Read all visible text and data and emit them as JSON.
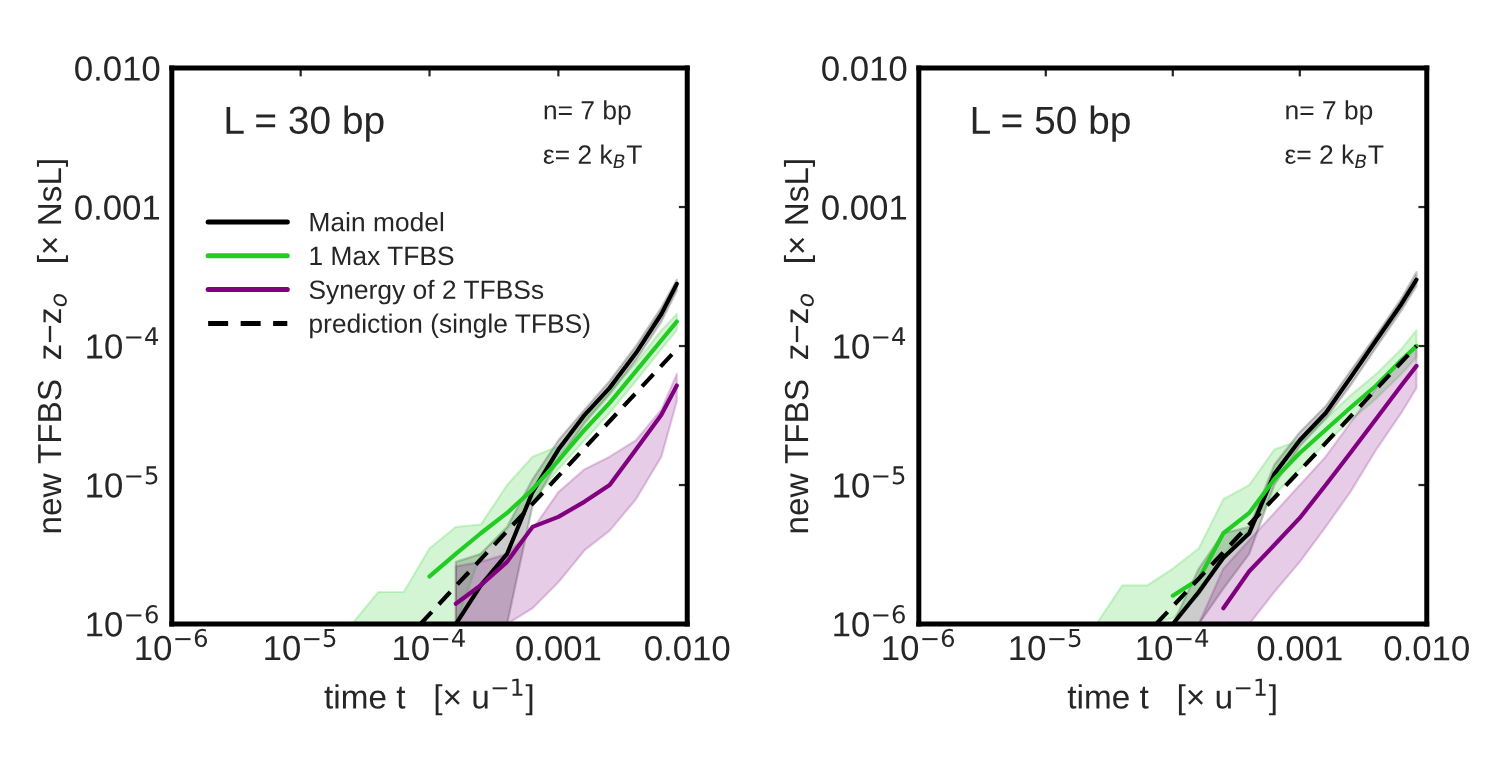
{
  "chart_data": [
    {
      "type": "line",
      "log": "xy",
      "xlabel": "time t   [× u$^{−1}$]",
      "ylabel": "new TFBS  z−z$_{o}$   [× NsL]",
      "xlim": [
        1e-06,
        0.01
      ],
      "ylim": [
        1e-06,
        0.01
      ],
      "xticks": [
        {
          "value": 1e-06,
          "label": "10$^{−6}$"
        },
        {
          "value": 1e-05,
          "label": "10$^{−5}$"
        },
        {
          "value": 0.0001,
          "label": "10$^{−4}$"
        },
        {
          "value": 0.001,
          "label": "0.001"
        },
        {
          "value": 0.01,
          "label": "0.010"
        }
      ],
      "yticks": [
        {
          "value": 1e-06,
          "label": "10$^{−6}$"
        },
        {
          "value": 1e-05,
          "label": "10$^{−5}$"
        },
        {
          "value": 0.0001,
          "label": "10$^{−4}$"
        },
        {
          "value": 0.001,
          "label": "0.001"
        },
        {
          "value": 0.01,
          "label": "0.010"
        }
      ],
      "annotations": [
        "L = 30 bp",
        "n= 7 bp",
        "ε= 2 k$_{B}$T"
      ],
      "legend": "top left",
      "grid": false,
      "series": [
        {
          "name": "Main model",
          "color": "#000000",
          "x": [
            0.00016,
            0.00025,
            0.0004,
            0.00063,
            0.001,
            0.0016,
            0.0025,
            0.004,
            0.0063,
            0.0083
          ],
          "values": [
            1e-06,
            1.9e-06,
            3.2e-06,
            8.9e-06,
            1.8e-05,
            3.2e-05,
            5e-05,
            8.9e-05,
            0.00017,
            0.00028
          ],
          "upper": [
            2.8e-06,
            3.2e-06,
            5e-06,
            1.1e-05,
            2.1e-05,
            3.5e-05,
            5.6e-05,
            0.0001,
            0.00019,
            0.0003
          ],
          "lower": [
            1e-06,
            1e-06,
            1e-06,
            7.1e-06,
            1.5e-05,
            2.8e-05,
            4.5e-05,
            7.9e-05,
            0.00015,
            0.00025
          ]
        },
        {
          "name": "1 Max TFBS",
          "color": "#22cc22",
          "x": [
            2.5e-05,
            4e-05,
            6.3e-05,
            0.0001,
            0.00016,
            0.00025,
            0.0004,
            0.00063,
            0.001,
            0.0016,
            0.0025,
            0.004,
            0.0063,
            0.0083
          ],
          "values": [
            null,
            null,
            null,
            2.2e-06,
            3.2e-06,
            4.5e-06,
            6.3e-06,
            9.3e-06,
            1.5e-05,
            2.5e-05,
            3.9e-05,
            6.6e-05,
            0.00011,
            0.00015
          ],
          "upper": [
            1e-06,
            1.7e-06,
            1.7e-06,
            3.5e-06,
            5e-06,
            5.2e-06,
            1e-05,
            1.6e-05,
            1.9e-05,
            3e-05,
            4.7e-05,
            7.6e-05,
            0.00013,
            0.00017
          ],
          "lower": [
            1e-06,
            1e-06,
            1e-06,
            1e-06,
            1e-06,
            3.2e-06,
            4.8e-06,
            7.6e-06,
            1.3e-05,
            2.1e-05,
            3.3e-05,
            5.6e-05,
            9.5e-05,
            0.00013
          ]
        },
        {
          "name": "Synergy of 2 TFBSs",
          "color": "#800080",
          "x": [
            0.00016,
            0.00025,
            0.0004,
            0.00063,
            0.001,
            0.0016,
            0.0025,
            0.004,
            0.0063,
            0.0083
          ],
          "values": [
            1.4e-06,
            1.9e-06,
            2.8e-06,
            5e-06,
            5.9e-06,
            7.6e-06,
            1e-05,
            1.8e-05,
            3.2e-05,
            5.2e-05
          ],
          "upper": [
            2.6e-06,
            2.8e-06,
            3.2e-06,
            4.8e-06,
            8.9e-06,
            1.3e-05,
            1.6e-05,
            2.1e-05,
            3.5e-05,
            6.3e-05
          ],
          "lower": [
            1e-06,
            1e-06,
            1e-06,
            1.3e-06,
            2e-06,
            3.4e-06,
            4.7e-06,
            7.9e-06,
            1.6e-05,
            4e-05
          ]
        },
        {
          "name": "prediction (single TFBS)",
          "color": "#000000",
          "line_style": "dashed",
          "x": [
            8.5e-05,
            0.0083
          ],
          "values": [
            1e-06,
            9.5e-05
          ]
        }
      ]
    },
    {
      "type": "line",
      "log": "xy",
      "xlabel": "time t   [× u$^{−1}$]",
      "ylabel": "new TFBS  z−z$_{o}$   [× NsL]",
      "xlim": [
        1e-06,
        0.01
      ],
      "ylim": [
        1e-06,
        0.01
      ],
      "xticks": [
        {
          "value": 1e-06,
          "label": "10$^{−6}$"
        },
        {
          "value": 1e-05,
          "label": "10$^{−5}$"
        },
        {
          "value": 0.0001,
          "label": "10$^{−4}$"
        },
        {
          "value": 0.001,
          "label": "0.001"
        },
        {
          "value": 0.01,
          "label": "0.010"
        }
      ],
      "yticks": [
        {
          "value": 1e-06,
          "label": "10$^{−6}$"
        },
        {
          "value": 1e-05,
          "label": "10$^{−5}$"
        },
        {
          "value": 0.0001,
          "label": "10$^{−4}$"
        },
        {
          "value": 0.001,
          "label": "0.001"
        },
        {
          "value": 0.01,
          "label": "0.010"
        }
      ],
      "annotations": [
        "L = 50 bp",
        "n= 7 bp",
        "ε= 2 k$_{B}$T"
      ],
      "grid": false,
      "series": [
        {
          "color": "#000000",
          "x": [
            0.0001,
            0.00016,
            0.00025,
            0.0004,
            0.00063,
            0.001,
            0.0016,
            0.0025,
            0.004,
            0.0063,
            0.0083
          ],
          "values": [
            1e-06,
            1.7e-06,
            3e-06,
            4.5e-06,
            1.2e-05,
            2.1e-05,
            3.3e-05,
            5.9e-05,
            0.00011,
            0.0002,
            0.0003
          ],
          "upper": [
            1e-06,
            2.5e-06,
            4.5e-06,
            5e-06,
            1.4e-05,
            2.4e-05,
            3.7e-05,
            6.6e-05,
            0.00012,
            0.00022,
            0.00034
          ],
          "lower": [
            1e-06,
            1e-06,
            1.8e-06,
            3.2e-06,
            1e-05,
            1.9e-05,
            3e-05,
            5.2e-05,
            9.8e-05,
            0.00018,
            0.00027
          ]
        },
        {
          "color": "#22cc22",
          "x": [
            2.5e-05,
            4e-05,
            6.3e-05,
            0.0001,
            0.00016,
            0.00025,
            0.0004,
            0.00063,
            0.001,
            0.0016,
            0.0025,
            0.004,
            0.0063,
            0.0083
          ],
          "values": [
            null,
            null,
            null,
            1.6e-06,
            2.1e-06,
            4.5e-06,
            6.3e-06,
            1.1e-05,
            1.7e-05,
            2.5e-05,
            3.6e-05,
            5.2e-05,
            7.9e-05,
            0.0001
          ],
          "upper": [
            1e-06,
            1.9e-06,
            1.9e-06,
            2.5e-06,
            3.5e-06,
            7.9e-06,
            1e-05,
            1.8e-05,
            2.1e-05,
            3e-05,
            4.4e-05,
            6.3e-05,
            9.5e-05,
            0.00013
          ],
          "lower": [
            1e-06,
            1e-06,
            1e-06,
            1.1e-06,
            1.6e-06,
            3.2e-06,
            4.8e-06,
            8.5e-06,
            1.3e-05,
            2e-05,
            2.9e-05,
            4.2e-05,
            6.3e-05,
            8.3e-05
          ]
        },
        {
          "color": "#800080",
          "x": [
            0.00016,
            0.00025,
            0.0004,
            0.00063,
            0.001,
            0.0016,
            0.0025,
            0.004,
            0.0063,
            0.0083
          ],
          "values": [
            null,
            1.3e-06,
            2.4e-06,
            3.7e-06,
            5.8e-06,
            1e-05,
            1.7e-05,
            3e-05,
            5.2e-05,
            7.2e-05
          ],
          "upper": [
            1e-06,
            2.5e-06,
            4e-06,
            6.3e-06,
            1e-05,
            1.6e-05,
            2.8e-05,
            5e-05,
            7.9e-05,
            0.0001
          ],
          "lower": [
            1e-06,
            1e-06,
            1e-06,
            1.7e-06,
            2.8e-06,
            5e-06,
            8.9e-06,
            1.8e-05,
            3.3e-05,
            5e-05
          ]
        },
        {
          "color": "#000000",
          "line_style": "dashed",
          "x": [
            7.4e-05,
            0.0083
          ],
          "values": [
            1e-06,
            0.0001
          ]
        }
      ]
    }
  ]
}
